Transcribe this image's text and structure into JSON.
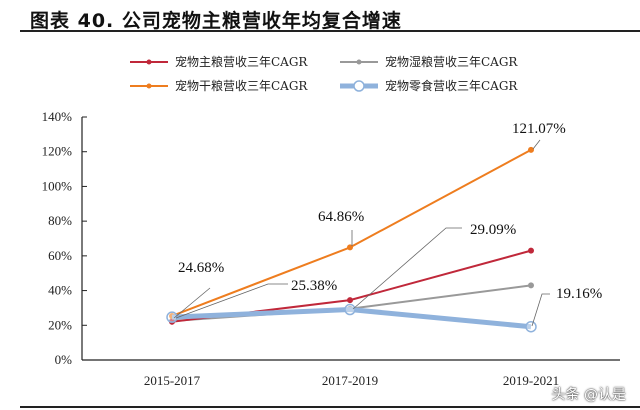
{
  "title": "图表 40. 公司宠物主粮营收年均复合增速",
  "watermark": "头条 @认是",
  "chart_data": {
    "type": "line",
    "title": "图表 40. 公司宠物主粮营收年均复合增速",
    "xlabel": "",
    "ylabel": "",
    "categories": [
      "2015-2017",
      "2017-2019",
      "2019-2021"
    ],
    "ylim": [
      0,
      140
    ],
    "yticks": [
      0,
      20,
      40,
      60,
      80,
      100,
      120,
      140
    ],
    "ytick_format": "%",
    "grid": false,
    "legend_position": "top",
    "series": [
      {
        "name": "宠物主粮营收三年CAGR",
        "color": "#c0283a",
        "marker": "dot",
        "values": [
          22,
          34.5,
          63
        ]
      },
      {
        "name": "宠物湿粮营收三年CAGR",
        "color": "#999999",
        "marker": "dot",
        "values": [
          22.5,
          29.5,
          43
        ]
      },
      {
        "name": "宠物干粮营收三年CAGR",
        "color": "#ee7d1f",
        "marker": "dot",
        "values": [
          25.38,
          64.86,
          121.07
        ]
      },
      {
        "name": "宠物零食营收三年CAGR",
        "color": "#8fb2dc",
        "marker": "circle",
        "values": [
          24.68,
          29.09,
          19.16
        ]
      }
    ],
    "annotations": [
      {
        "text": "24.68%",
        "series": "宠物零食营收三年CAGR",
        "category": "2015-2017"
      },
      {
        "text": "25.38%",
        "series": "宠物干粮营收三年CAGR",
        "category": "2015-2017"
      },
      {
        "text": "64.86%",
        "series": "宠物干粮营收三年CAGR",
        "category": "2017-2019"
      },
      {
        "text": "29.09%",
        "series": "宠物零食营收三年CAGR",
        "category": "2017-2019"
      },
      {
        "text": "121.07%",
        "series": "宠物干粮营收三年CAGR",
        "category": "2019-2021"
      },
      {
        "text": "19.16%",
        "series": "宠物零食营收三年CAGR",
        "category": "2019-2021"
      }
    ]
  }
}
